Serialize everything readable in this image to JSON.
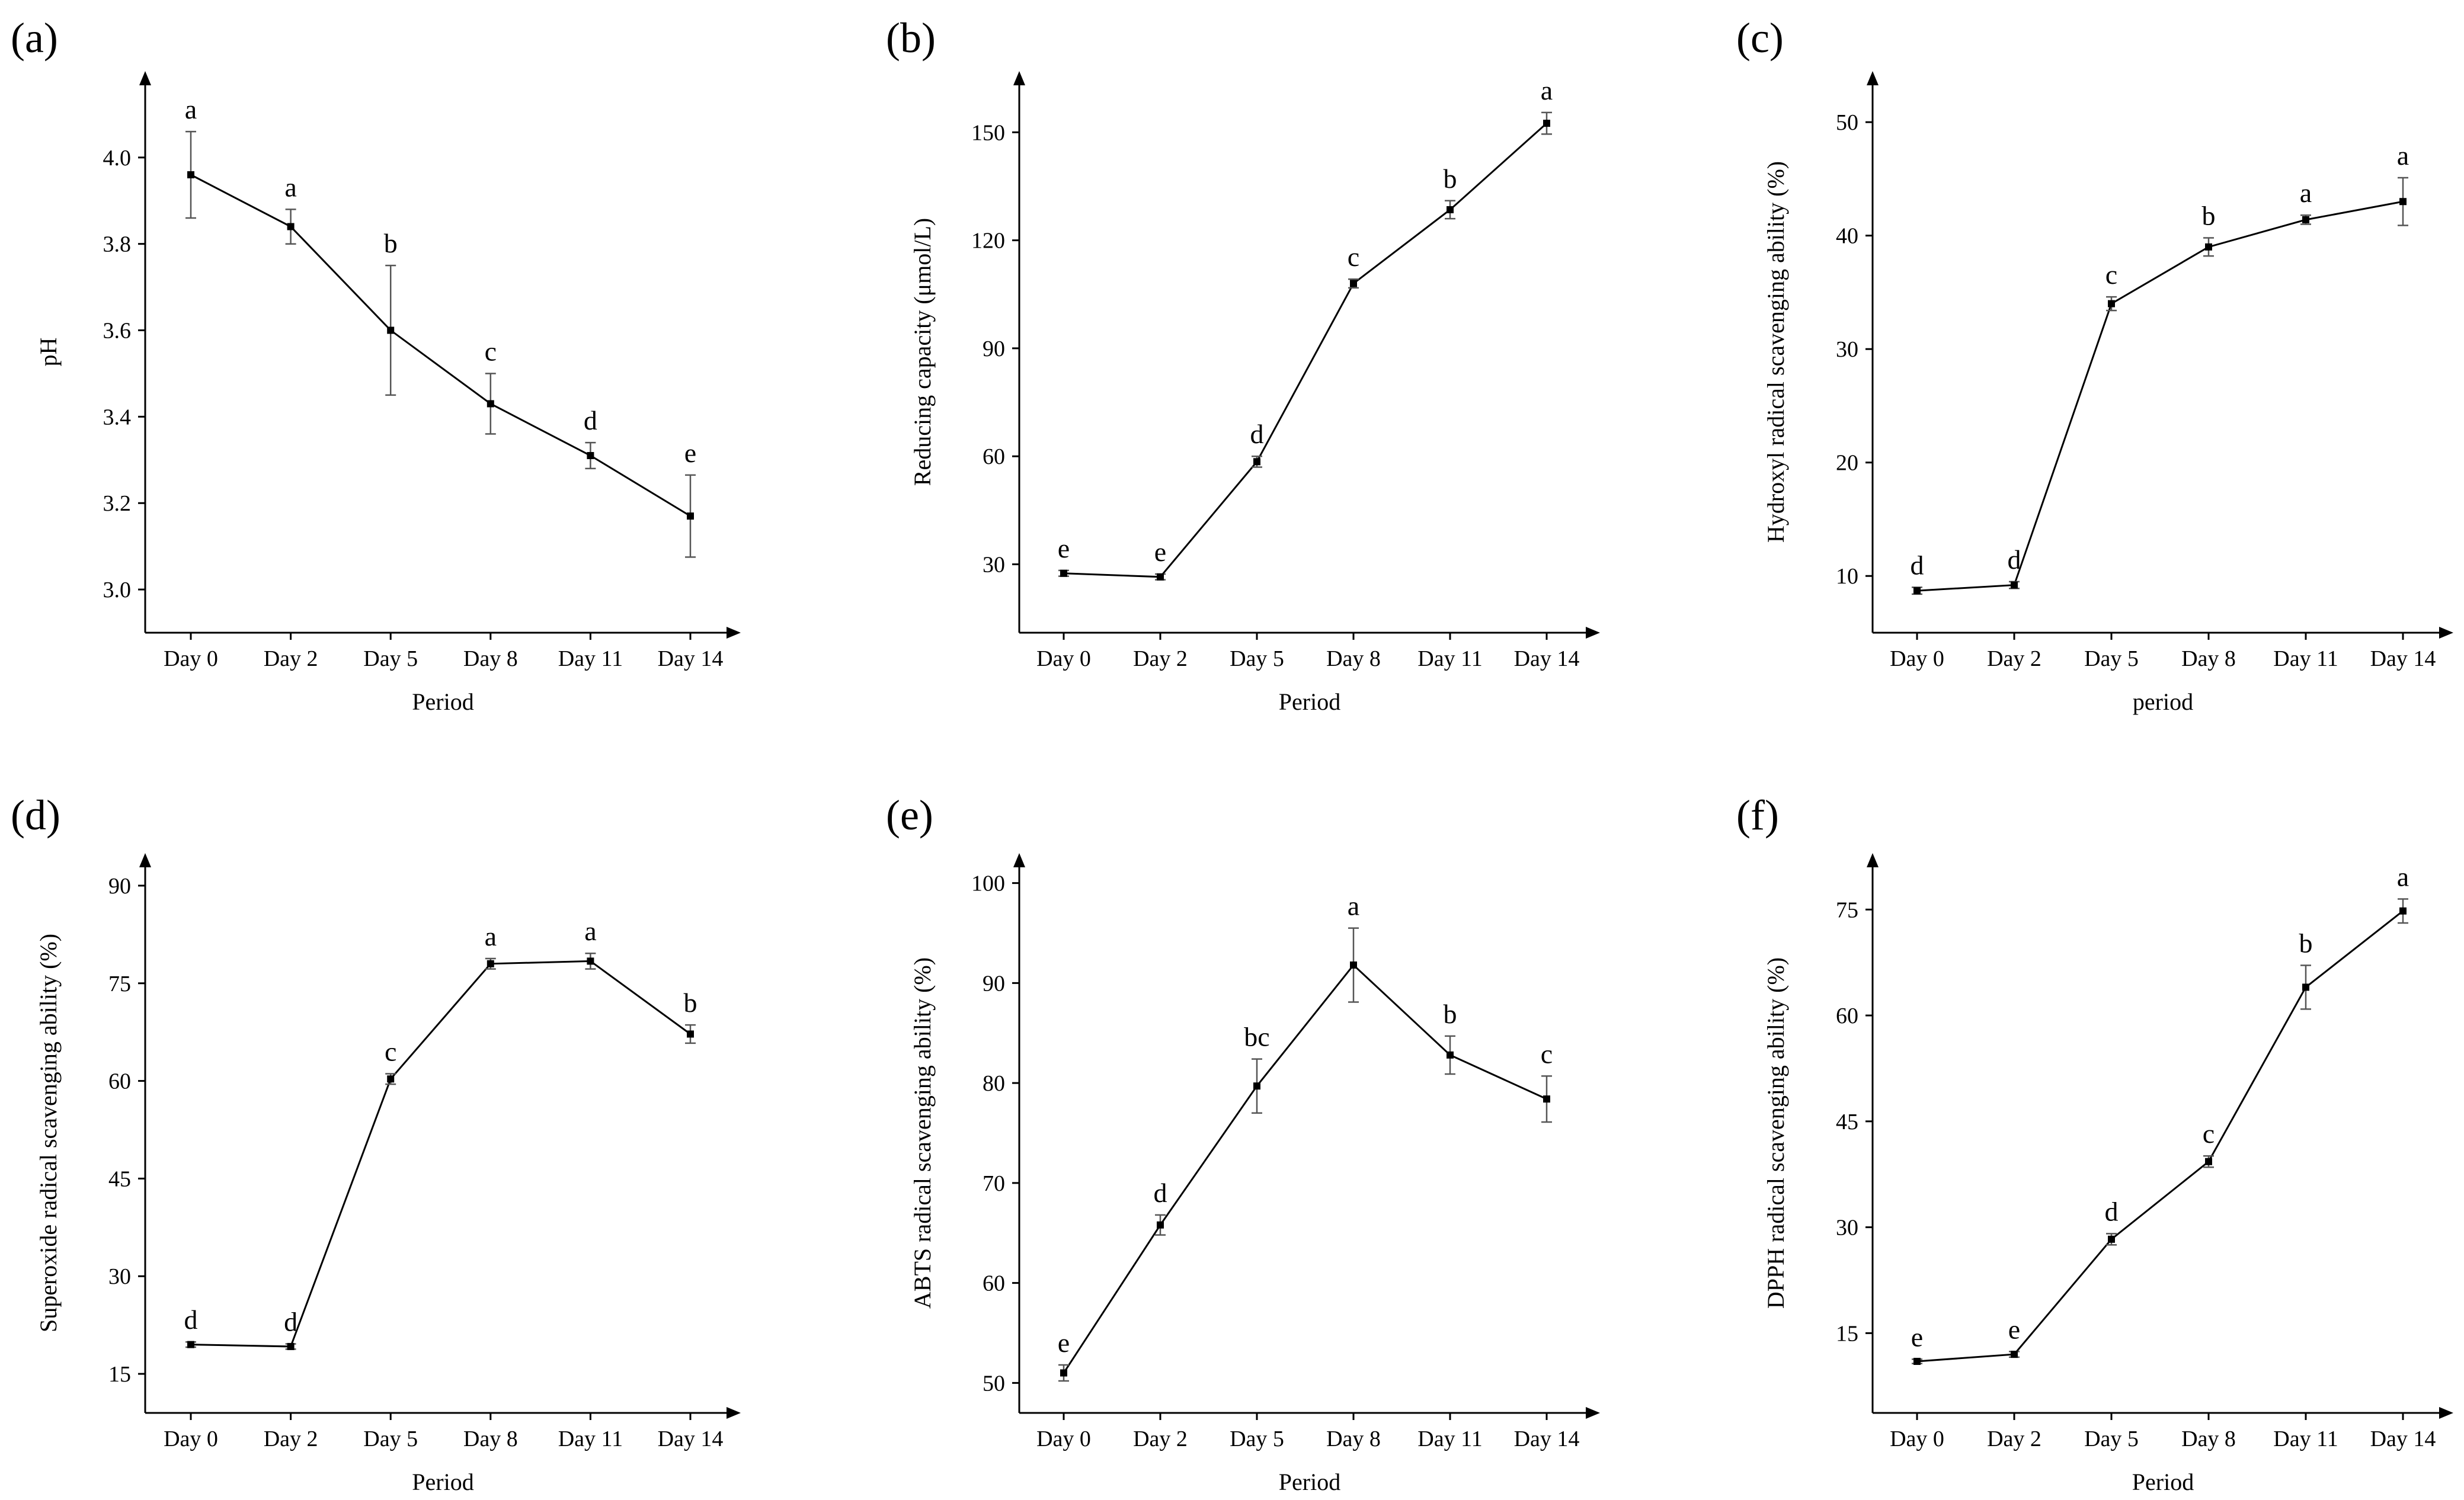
{
  "chart_data": [
    {
      "type": "line",
      "panel": "(a)",
      "categories": [
        "Day 0",
        "Day 2",
        "Day 5",
        "Day 8",
        "Day 11",
        "Day 14"
      ],
      "values": [
        3.96,
        3.84,
        3.6,
        3.43,
        3.31,
        3.17
      ],
      "errors": [
        0.1,
        0.04,
        0.15,
        0.07,
        0.03,
        0.095
      ],
      "letters": [
        "a",
        "a",
        "b",
        "c",
        "d",
        "e"
      ],
      "yticks": [
        3.0,
        3.2,
        3.4,
        3.6,
        3.8,
        4.0
      ],
      "ytick_labels": [
        "3.0",
        "3.2",
        "3.4",
        "3.6",
        "3.8",
        "4.0"
      ],
      "ylim": [
        2.9,
        4.2
      ],
      "xlabel": "Period",
      "ylabel": "pH"
    },
    {
      "type": "line",
      "panel": "(b)",
      "categories": [
        "Day 0",
        "Day 2",
        "Day 5",
        "Day 8",
        "Day 11",
        "Day 14"
      ],
      "values": [
        27.5,
        26.5,
        58.5,
        108,
        128.5,
        152.5
      ],
      "errors": [
        0.8,
        0.8,
        1.5,
        1.2,
        2.5,
        3
      ],
      "letters": [
        "e",
        "e",
        "d",
        "c",
        "b",
        "a"
      ],
      "yticks": [
        30,
        60,
        90,
        120,
        150
      ],
      "ytick_labels": [
        "30",
        "60",
        "90",
        "120",
        "150"
      ],
      "ylim": [
        11,
        167
      ],
      "xlabel": "Period",
      "ylabel": "Reducing capacity (μmol/L)"
    },
    {
      "type": "line",
      "panel": "(c)",
      "categories": [
        "Day 0",
        "Day 2",
        "Day 5",
        "Day 8",
        "Day 11",
        "Day 14"
      ],
      "values": [
        8.7,
        9.2,
        34,
        39,
        41.4,
        43
      ],
      "errors": [
        0.3,
        0.3,
        0.6,
        0.8,
        0.4,
        2.1
      ],
      "letters": [
        "d",
        "d",
        "c",
        "b",
        "a",
        "a"
      ],
      "yticks": [
        10,
        20,
        30,
        40,
        50
      ],
      "ytick_labels": [
        "10",
        "20",
        "30",
        "40",
        "50"
      ],
      "ylim": [
        5,
        54.5
      ],
      "xlabel": "period",
      "ylabel": "Hydroxyl radical scavenging ability (%)"
    },
    {
      "type": "line",
      "panel": "(d)",
      "categories": [
        "Day 0",
        "Day 2",
        "Day 5",
        "Day 8",
        "Day 11",
        "Day 14"
      ],
      "values": [
        19.5,
        19.2,
        60.3,
        78,
        78.4,
        67.2
      ],
      "errors": [
        0.4,
        0.4,
        0.8,
        0.8,
        1.2,
        1.4
      ],
      "letters": [
        "d",
        "d",
        "c",
        "a",
        "a",
        "b"
      ],
      "yticks": [
        15,
        30,
        45,
        60,
        75,
        90
      ],
      "ytick_labels": [
        "15",
        "30",
        "45",
        "60",
        "75",
        "90"
      ],
      "ylim": [
        9,
        95
      ],
      "xlabel": "Period",
      "ylabel": "Superoxide radical scavenging ability (%)"
    },
    {
      "type": "line",
      "panel": "(e)",
      "categories": [
        "Day 0",
        "Day 2",
        "Day 5",
        "Day 8",
        "Day 11",
        "Day 14"
      ],
      "values": [
        51,
        65.8,
        79.7,
        91.8,
        82.8,
        78.4
      ],
      "errors": [
        0.8,
        1.0,
        2.7,
        3.7,
        1.9,
        2.3
      ],
      "letters": [
        "e",
        "d",
        "bc",
        "a",
        "b",
        "c"
      ],
      "yticks": [
        50,
        60,
        70,
        80,
        90,
        100
      ],
      "ytick_labels": [
        "50",
        "60",
        "70",
        "80",
        "90",
        "100"
      ],
      "ylim": [
        47,
        103
      ],
      "xlabel": "Period",
      "ylabel": "ABTS radical scavenging ability (%)"
    },
    {
      "type": "line",
      "panel": "(f)",
      "categories": [
        "Day 0",
        "Day 2",
        "Day 5",
        "Day 8",
        "Day 11",
        "Day 14"
      ],
      "values": [
        11,
        12,
        28.3,
        39.3,
        64,
        74.8
      ],
      "errors": [
        0.3,
        0.4,
        0.8,
        0.8,
        3.1,
        1.7
      ],
      "letters": [
        "e",
        "e",
        "d",
        "c",
        "b",
        "a"
      ],
      "yticks": [
        15,
        30,
        45,
        60,
        75
      ],
      "ytick_labels": [
        "15",
        "30",
        "45",
        "60",
        "75"
      ],
      "ylim": [
        3.7,
        83
      ],
      "xlabel": "Period",
      "ylabel": "DPPH radical scavenging ability (%)"
    }
  ]
}
